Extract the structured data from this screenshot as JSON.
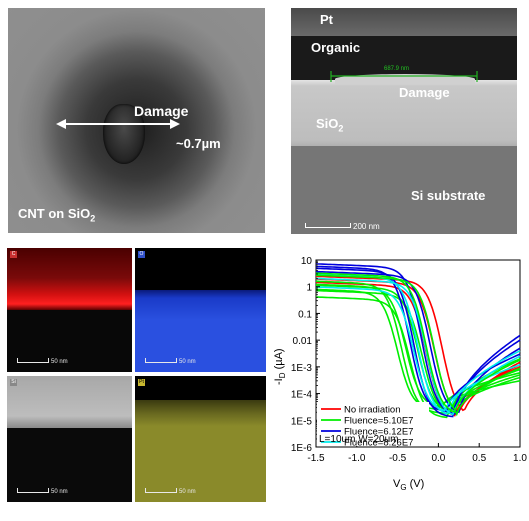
{
  "panel_a": {
    "damage_label": "Damage",
    "width_label": "~0.7µm",
    "sample_label_main": "CNT on SiO",
    "sample_label_sub": "2"
  },
  "panel_b": {
    "pt_label": "Pt",
    "organic_label": "Organic",
    "measure_label": "687.9 nm",
    "damage_label": "Damage",
    "sio2_main": "SiO",
    "sio2_sub": "2",
    "si_label": "Si substrate",
    "scale_label": "200 nm"
  },
  "eds_maps": [
    {
      "tag": "C",
      "scale": "50 nm",
      "tag_color": "#c83030"
    },
    {
      "tag": "O",
      "scale": "50 nm",
      "tag_color": "#3050c8"
    },
    {
      "tag": "Si",
      "scale": "50 nm",
      "tag_color": "#888888"
    },
    {
      "tag": "Pt",
      "scale": "50 nm",
      "tag_color": "#c8b830"
    }
  ],
  "chart_data": {
    "type": "line",
    "ylabel_main": "-I",
    "ylabel_sub": "D",
    "ylabel_unit": " (µA)",
    "xlabel_main": "V",
    "xlabel_sub": "G",
    "xlabel_unit": " (V)",
    "log_y": true,
    "xlim": [
      -1.5,
      1.0
    ],
    "ylim": [
      1e-06,
      10
    ],
    "x_ticks": [
      -1.5,
      -1.0,
      -0.5,
      0.0,
      0.5,
      1.0
    ],
    "x_tick_labels": [
      "-1.5",
      "-1.0",
      "-0.5",
      "0.0",
      "0.5",
      "1.0"
    ],
    "y_ticks": [
      10,
      1,
      0.1,
      0.01,
      0.001,
      0.0001,
      1e-05,
      1e-06
    ],
    "y_tick_labels": [
      "10",
      "1",
      "0.1",
      "0.01",
      "1E-3",
      "1E-4",
      "1E-5",
      "1E-6"
    ],
    "legend_position": "bottom-left",
    "legend": [
      {
        "name": "No irradiation",
        "color": "#ff0000"
      },
      {
        "name": "Fluence=5.10E7",
        "color": "#00ee00"
      },
      {
        "name": "Fluence=6.12E7",
        "color": "#0000dd"
      },
      {
        "name": "Fluence=8.26E7",
        "color": "#00eeee"
      }
    ],
    "annotation": "L=10um W=20um",
    "series": [
      {
        "name": "No irradiation",
        "color": "#ff0000",
        "on": 1.6,
        "vth": 0.05,
        "vmin": 0.3,
        "imin": 1.2e-05,
        "iend": 0.0015
      },
      {
        "color": "#ff0000",
        "on": 1.3,
        "vth": -0.05,
        "vmin": 0.25,
        "imin": 1.4e-05,
        "iend": 0.0012
      },
      {
        "color": "#ff0000",
        "on": 1.0,
        "vth": -0.15,
        "vmin": 0.2,
        "imin": 1.2e-05,
        "iend": 0.001
      },
      {
        "name": "Fluence=5.10E7",
        "color": "#00ee00",
        "on": 0.8,
        "vth": -0.25,
        "vmin": 0.15,
        "imin": 2e-05,
        "iend": 0.0005
      },
      {
        "color": "#00ee00",
        "on": 0.5,
        "vth": -0.2,
        "vmin": 0.12,
        "imin": 1.5e-05,
        "iend": 0.0008
      },
      {
        "color": "#00ee00",
        "on": 0.3,
        "vth": -0.35,
        "vmin": 0.1,
        "imin": 1.2e-05,
        "iend": 0.0004
      },
      {
        "color": "#00ee00",
        "on": 0.9,
        "vth": -0.4,
        "vmin": 0.05,
        "imin": 3e-05,
        "iend": 0.0006
      },
      {
        "color": "#00ee00",
        "on": 1.2,
        "vth": -0.45,
        "vmin": 0.15,
        "imin": 1.8e-05,
        "iend": 0.002
      },
      {
        "color": "#00ee00",
        "on": 0.6,
        "vth": -0.5,
        "vmin": 0.0,
        "imin": 2.5e-05,
        "iend": 0.0003
      },
      {
        "name": "Fluence=6.12E7",
        "color": "#0000dd",
        "on": 5.0,
        "vth": -0.2,
        "vmin": 0.2,
        "imin": 1.5e-05,
        "iend": 0.015
      },
      {
        "color": "#0000dd",
        "on": 3.5,
        "vth": -0.3,
        "vmin": 0.18,
        "imin": 1.3e-05,
        "iend": 0.01
      },
      {
        "color": "#0000dd",
        "on": 2.5,
        "vth": -0.1,
        "vmin": 0.25,
        "imin": 1.6e-05,
        "iend": 0.005
      },
      {
        "color": "#0000dd",
        "on": 4.2,
        "vth": -0.35,
        "vmin": 0.1,
        "imin": 2e-05,
        "iend": 0.003
      },
      {
        "name": "Fluence=8.26E7",
        "color": "#00eeee",
        "on": 2.0,
        "vth": -0.25,
        "vmin": 0.12,
        "imin": 1.4e-05,
        "iend": 0.004
      },
      {
        "color": "#00eeee",
        "on": 1.4,
        "vth": -0.15,
        "vmin": 0.18,
        "imin": 1.2e-05,
        "iend": 0.0025
      },
      {
        "color": "#00eeee",
        "on": 0.7,
        "vth": -0.3,
        "vmin": 0.08,
        "imin": 2e-05,
        "iend": 0.0012
      },
      {
        "color": "#00ee00",
        "on": 2.2,
        "vth": -0.15,
        "vmin": 0.2,
        "imin": 1.6e-05,
        "iend": 0.0018
      },
      {
        "color": "#00ee00",
        "on": 1.8,
        "vth": -0.05,
        "vmin": 0.22,
        "imin": 1.3e-05,
        "iend": 0.0009
      }
    ]
  }
}
